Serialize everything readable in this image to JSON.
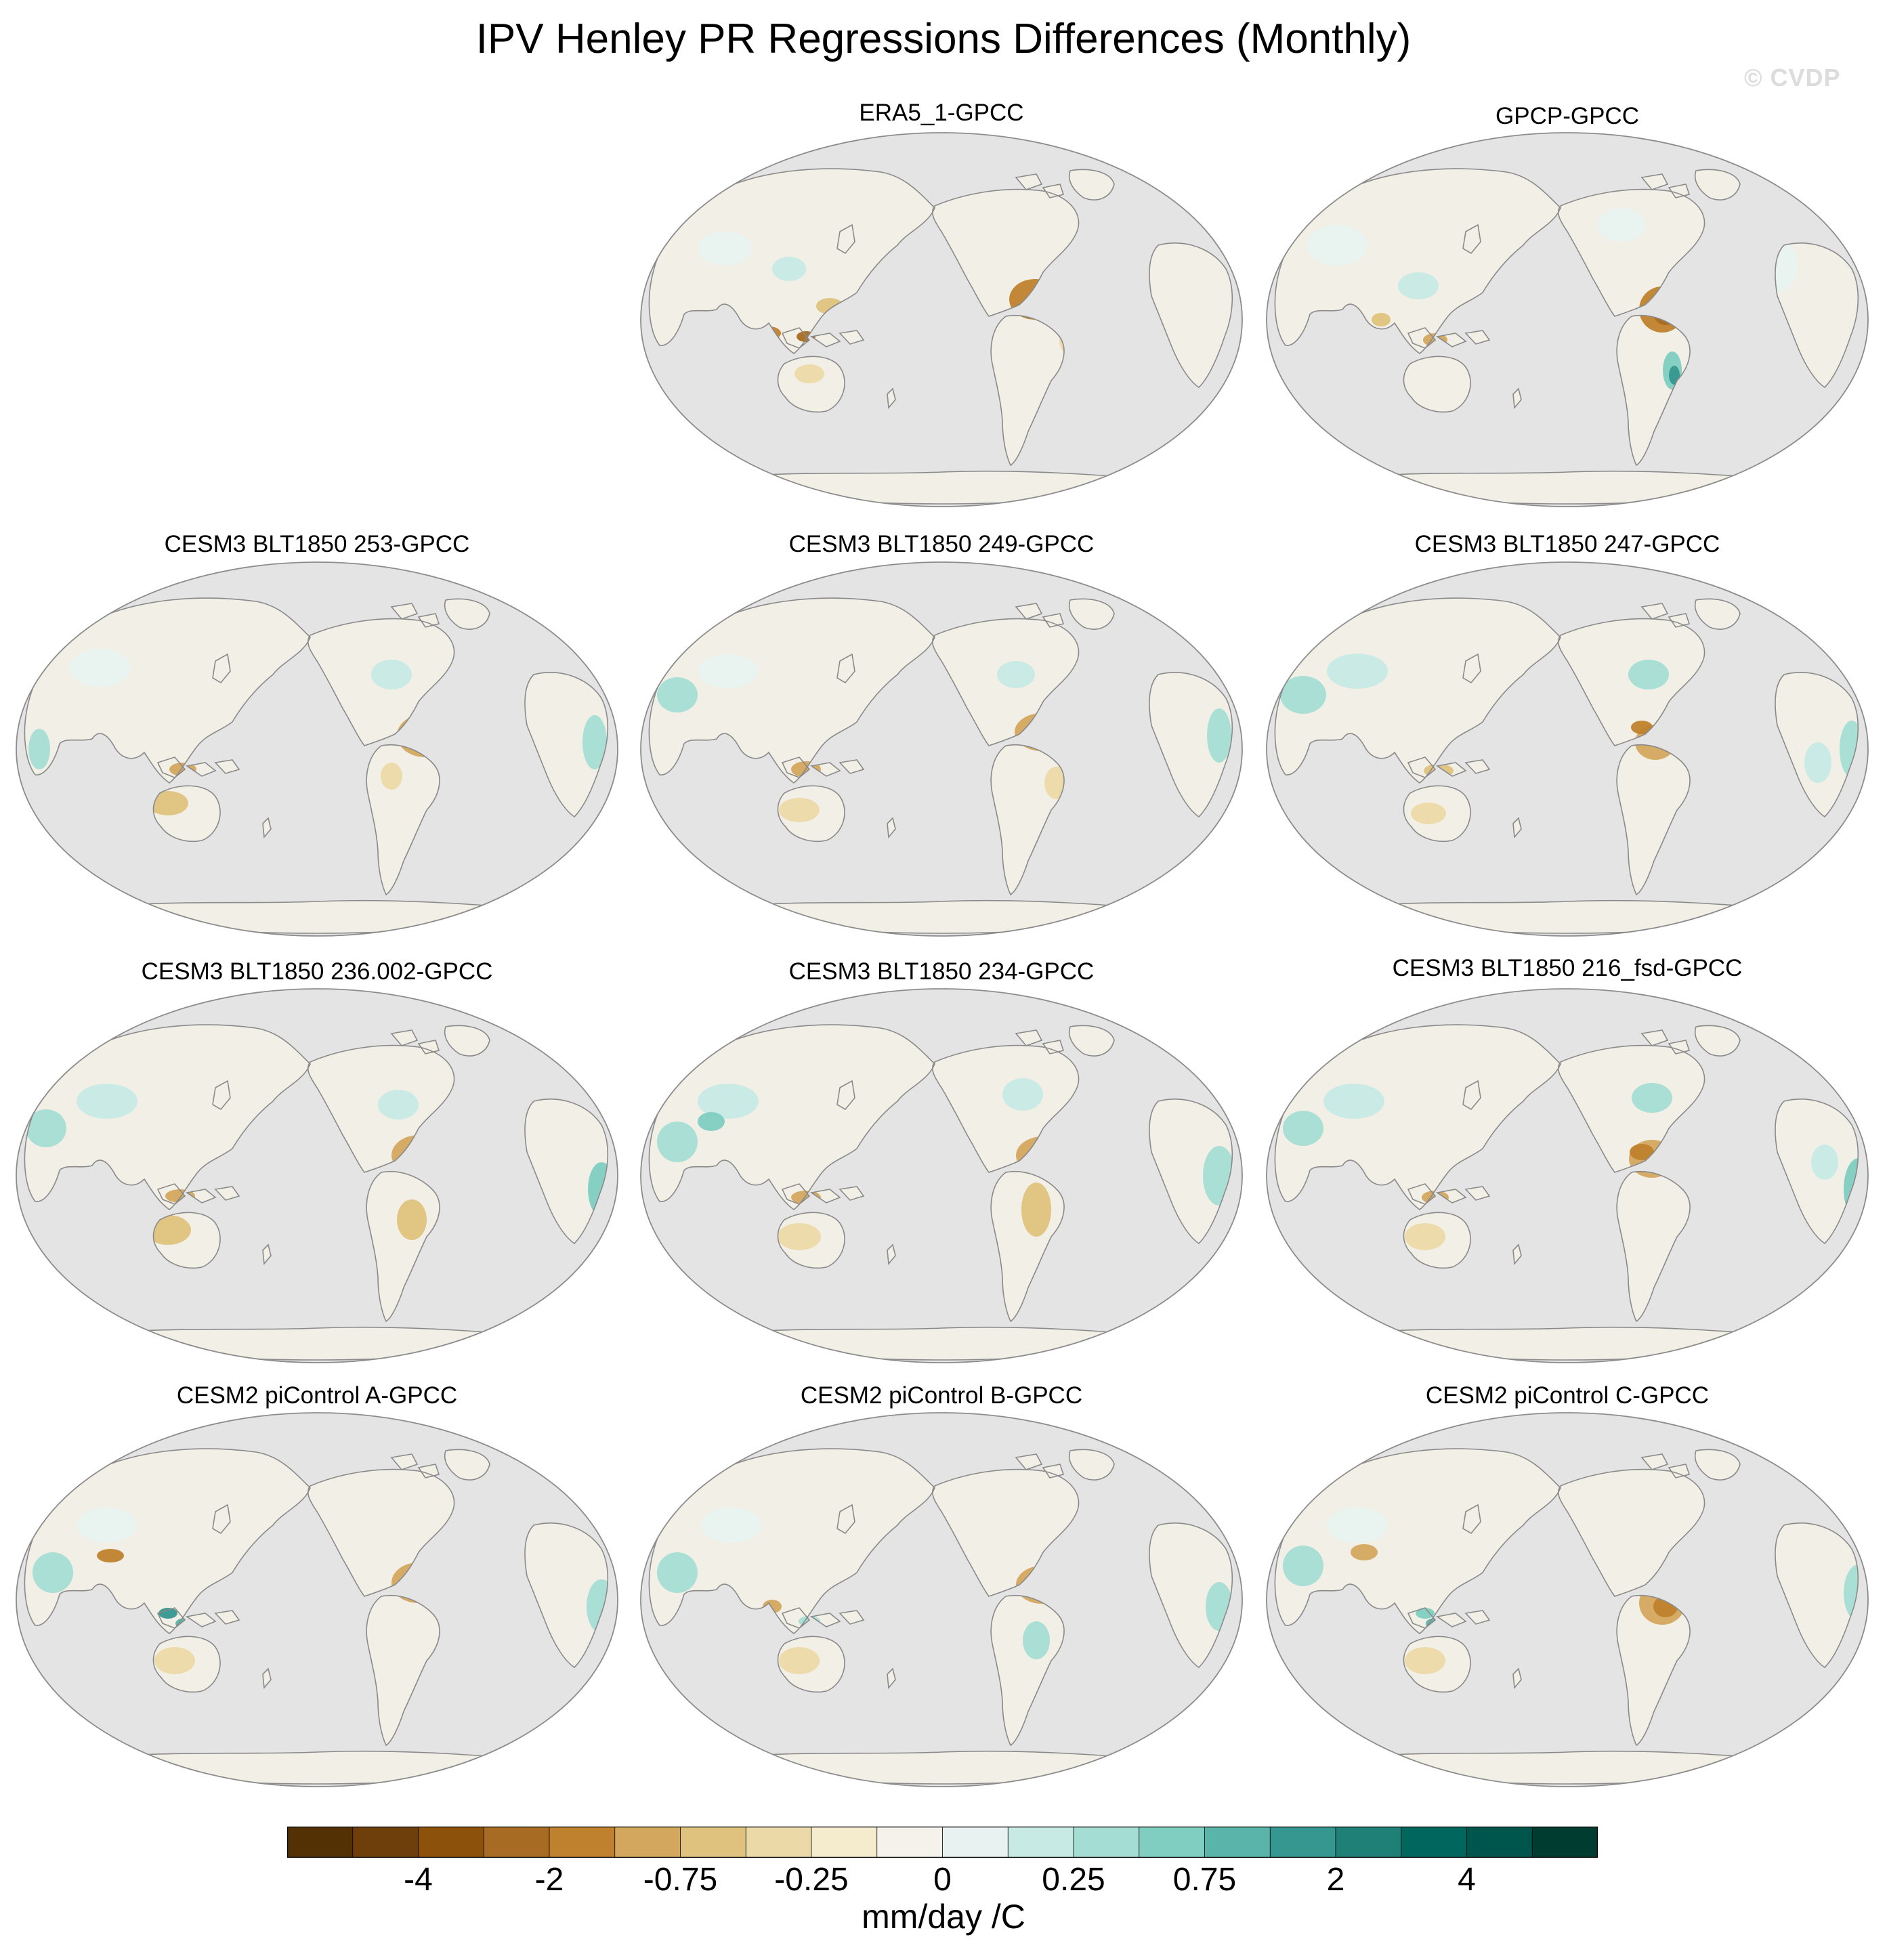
{
  "title": "IPV Henley PR Regressions Differences (Monthly)",
  "watermark": "© CVDP",
  "panels": [
    {
      "title": "ERA5_1-GPCC"
    },
    {
      "title": "GPCP-GPCC"
    },
    {
      "title": "CESM3 BLT1850 253-GPCC"
    },
    {
      "title": "CESM3 BLT1850 249-GPCC"
    },
    {
      "title": "CESM3 BLT1850 247-GPCC"
    },
    {
      "title": "CESM3 BLT1850 236.002-GPCC"
    },
    {
      "title": "CESM3 BLT1850 234-GPCC"
    },
    {
      "title": "CESM3 BLT1850 216_fsd-GPCC"
    },
    {
      "title": "CESM2 piControl A-GPCC"
    },
    {
      "title": "CESM2 piControl B-GPCC"
    },
    {
      "title": "CESM2 piControl C-GPCC"
    }
  ],
  "colorbar": {
    "colors": [
      "#543005",
      "#6e3f0b",
      "#8c510a",
      "#a86b23",
      "#bf812d",
      "#d3a75e",
      "#dfc27d",
      "#ecd9a8",
      "#f5ebcd",
      "#f5f2ec",
      "#e8f3f1",
      "#c7eae5",
      "#a4ddd3",
      "#80cdc1",
      "#5ab4a9",
      "#35978f",
      "#1e8077",
      "#01665e",
      "#00554d",
      "#003c30"
    ],
    "tick_labels": [
      "-4",
      "-2",
      "-0.75",
      "-0.25",
      "0",
      "0.25",
      "0.75",
      "2",
      "4"
    ],
    "units": "mm/day /C"
  },
  "map_style": {
    "ocean": "#e4e4e4",
    "land_base": "#f2efe7",
    "coast": "#8a8a8a",
    "frame": "#8c8c8c"
  }
}
